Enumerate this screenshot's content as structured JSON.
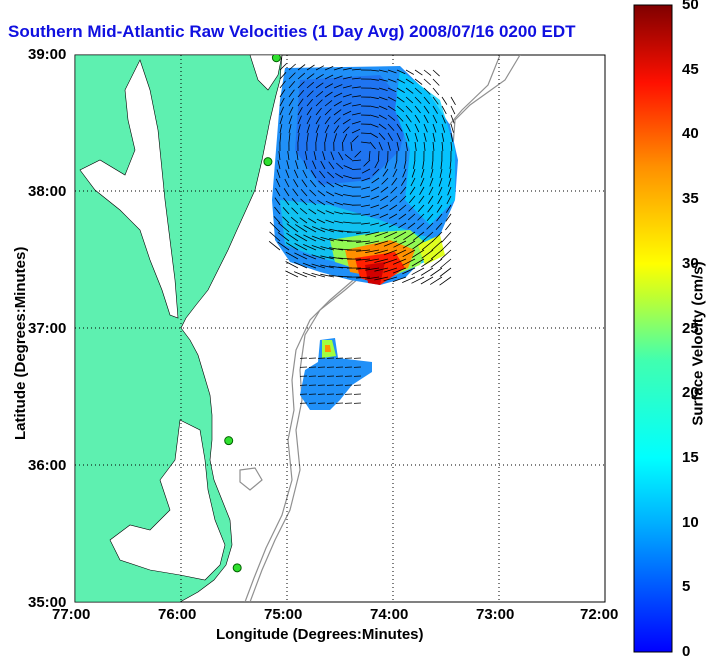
{
  "title": "Southern Mid-Atlantic Raw Velocities (1 Day Avg) 2008/07/16 0200 EDT",
  "xlabel": "Longitude (Degrees:Minutes)",
  "ylabel": "Latitude (Degrees:Minutes)",
  "colorbar": {
    "label": "Surface Velocity (cm/s)",
    "ticks": [
      "50",
      "45",
      "40",
      "35",
      "30",
      "25",
      "20",
      "15",
      "10",
      "5",
      "0"
    ],
    "range": [
      0,
      50
    ],
    "colors": [
      "#0000ff",
      "#00c0ff",
      "#00ffff",
      "#40ffb0",
      "#a0ff40",
      "#ffff00",
      "#ffa000",
      "#ff4000",
      "#e00000",
      "#800000"
    ]
  },
  "x_ticks": [
    "77:00",
    "76:00",
    "75:00",
    "74:00",
    "73:00",
    "72:00"
  ],
  "y_ticks": [
    "39:00",
    "38:00",
    "37:00",
    "36:00",
    "35:00"
  ],
  "map": {
    "lon_range": [
      -77,
      -72
    ],
    "lat_range": [
      35,
      39
    ],
    "land_color": "#5ef0b0",
    "contour_color": "#909090",
    "grid": true
  },
  "stations": [
    {
      "lon": -75.1,
      "lat": 38.98
    },
    {
      "lon": -75.18,
      "lat": 38.22
    },
    {
      "lon": -75.55,
      "lat": 36.18
    },
    {
      "lon": -75.47,
      "lat": 35.25
    }
  ]
}
